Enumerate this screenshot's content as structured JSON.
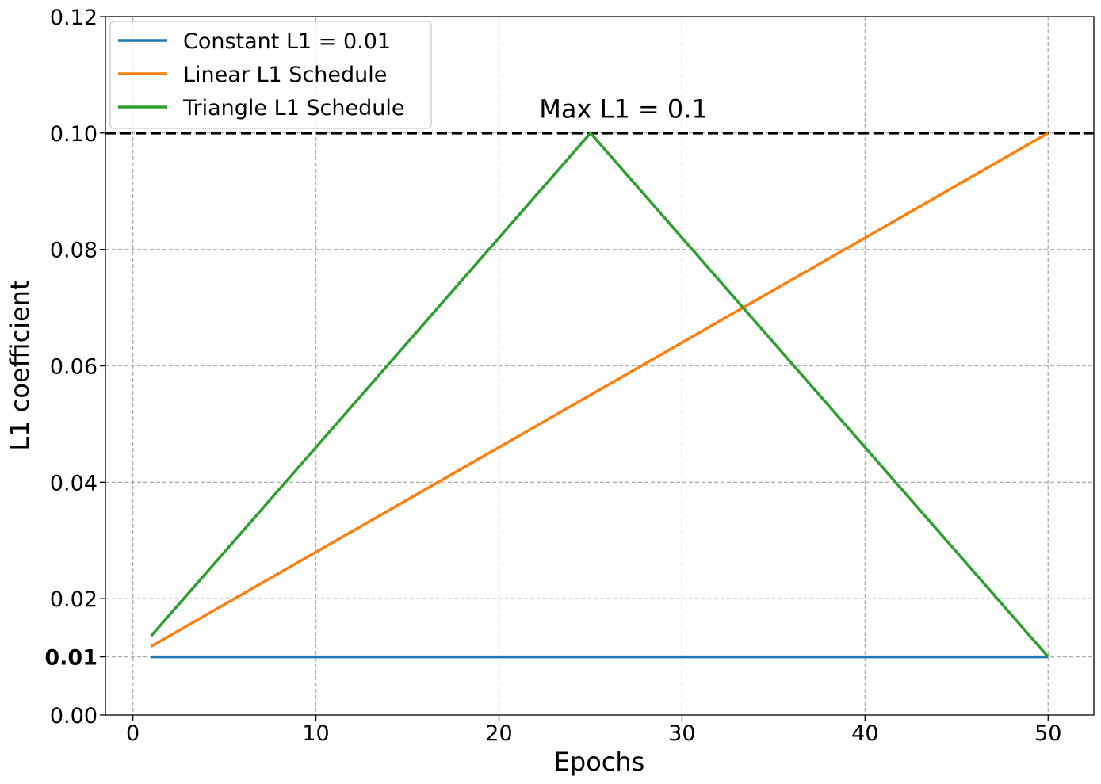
{
  "chart_data": {
    "type": "line",
    "xlabel": "Epochs",
    "ylabel": "L1 coefficient",
    "xlim": [
      -1.5,
      52.5
    ],
    "ylim": [
      0.0,
      0.12
    ],
    "x_ticks": [
      0,
      10,
      20,
      30,
      40,
      50
    ],
    "x_tick_labels": [
      "0",
      "10",
      "20",
      "30",
      "40",
      "50"
    ],
    "y_ticks": [
      0.0,
      0.01,
      0.02,
      0.04,
      0.06,
      0.08,
      0.1,
      0.12
    ],
    "y_tick_labels": [
      "0.00",
      "0.01",
      "0.02",
      "0.04",
      "0.06",
      "0.08",
      "0.10",
      "0.12"
    ],
    "y_tick_bold": [
      false,
      true,
      false,
      false,
      false,
      false,
      false,
      false
    ],
    "grid": true,
    "legend_position": "top-left",
    "series": [
      {
        "name": "Constant L1 = 0.01",
        "color": "#1f77b4",
        "x": [
          1,
          50
        ],
        "y": [
          0.01,
          0.01
        ]
      },
      {
        "name": "Linear L1 Schedule",
        "color": "#ff7f0e",
        "x": [
          1,
          50
        ],
        "y": [
          0.0118,
          0.1
        ]
      },
      {
        "name": "Triangle L1 Schedule",
        "color": "#2ca02c",
        "x": [
          1,
          25,
          50
        ],
        "y": [
          0.0136,
          0.1,
          0.01
        ]
      }
    ],
    "hline": {
      "y": 0.1,
      "color": "#000000",
      "style": "dashed"
    },
    "annotation": {
      "text": "Max L1 = 0.1",
      "x": 26.8,
      "y": 0.104
    }
  }
}
